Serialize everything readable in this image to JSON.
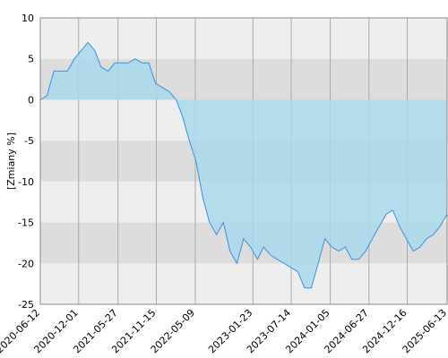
{
  "chart_data": {
    "type": "area",
    "ylabel": "[Zmiany %]",
    "x": [
      "2020-06-12",
      "2020-07-12",
      "2020-08-12",
      "2020-09-12",
      "2020-10-12",
      "2020-11-12",
      "2020-12-12",
      "2021-01-12",
      "2021-02-12",
      "2021-03-12",
      "2021-04-12",
      "2021-05-12",
      "2021-06-12",
      "2021-07-12",
      "2021-08-12",
      "2021-09-12",
      "2021-10-12",
      "2021-11-12",
      "2021-12-12",
      "2022-01-12",
      "2022-02-12",
      "2022-03-12",
      "2022-04-12",
      "2022-05-12",
      "2022-06-12",
      "2022-07-12",
      "2022-08-12",
      "2022-09-12",
      "2022-10-12",
      "2022-11-12",
      "2022-12-12",
      "2023-01-12",
      "2023-02-12",
      "2023-03-12",
      "2023-04-12",
      "2023-05-12",
      "2023-06-12",
      "2023-07-12",
      "2023-08-12",
      "2023-09-12",
      "2023-10-12",
      "2023-11-12",
      "2023-12-12",
      "2024-01-12",
      "2024-02-12",
      "2024-03-12",
      "2024-04-12",
      "2024-05-12",
      "2024-06-12",
      "2024-07-12",
      "2024-08-12",
      "2024-09-12",
      "2024-10-12",
      "2024-11-12",
      "2024-12-12",
      "2025-01-12",
      "2025-02-12",
      "2025-03-12",
      "2025-04-12",
      "2025-05-12",
      "2025-06-13"
    ],
    "series": [
      {
        "color": "#3d8fe0",
        "fill": "#a8d8ec",
        "values": [
          0,
          0.5,
          3.5,
          3.5,
          3.5,
          5,
          6,
          7,
          6,
          4,
          3.5,
          4.5,
          4.5,
          4.5,
          5,
          4.5,
          4.5,
          2,
          1.5,
          1,
          0,
          -2,
          -5,
          -7.5,
          -12,
          -15,
          -16.5,
          -15,
          -18.5,
          -20,
          -17,
          -18,
          -19.5,
          -18,
          -19,
          -19.5,
          -20,
          -20.5,
          -21,
          -23,
          -23,
          -20,
          -17,
          -18,
          -18.5,
          -18,
          -19.5,
          -19.5,
          -18.5,
          -17,
          -15.5,
          -14,
          -13.5,
          -15.5,
          -17,
          -18.5,
          -18,
          -17,
          -16.5,
          -15.5,
          -14
        ]
      }
    ],
    "xlim": [
      "2020-06-12",
      "2025-06-13"
    ],
    "xticks": [
      "2020-06-12",
      "2020-12-01",
      "2021-05-27",
      "2021-11-15",
      "2022-05-09",
      "2023-01-23",
      "2023-07-14",
      "2024-01-05",
      "2024-06-27",
      "2024-12-16",
      "2025-06-13"
    ],
    "ylim": [
      -25,
      10
    ],
    "yticks": [
      -25,
      -20,
      -15,
      -10,
      -5,
      0,
      5,
      10
    ],
    "band_colors": [
      "#eeeeee",
      "#dddddd"
    ],
    "grid": true
  }
}
